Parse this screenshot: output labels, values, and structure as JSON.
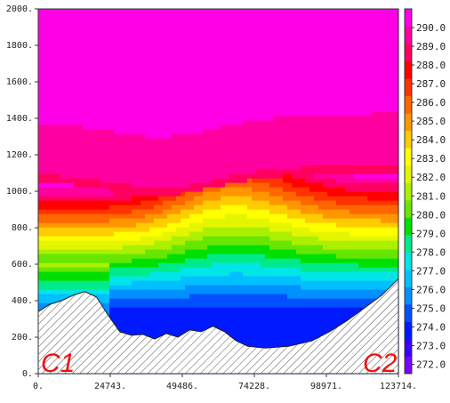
{
  "chart_data": {
    "type": "heatmap",
    "title": "",
    "xlabel": "",
    "ylabel": "",
    "x_ticks": [
      "0.",
      "24743.",
      "49486.",
      "74228.",
      "98971.",
      "123714."
    ],
    "y_ticks": [
      "0.",
      "200.",
      "400.",
      "600.",
      "800.",
      "1000.",
      "1200.",
      "1400.",
      "1600.",
      "1800.",
      "2000."
    ],
    "xlim": [
      0,
      123714
    ],
    "ylim": [
      0,
      2000
    ],
    "colorbar": {
      "min": 271.5,
      "max": 291.0,
      "labels": [
        "290.0",
        "289.0",
        "288.0",
        "287.0",
        "286.0",
        "285.0",
        "284.0",
        "283.0",
        "282.0",
        "281.0",
        "280.0",
        "279.0",
        "278.0",
        "277.0",
        "276.0",
        "275.0",
        "274.0",
        "273.0",
        "272.0"
      ],
      "colors": [
        "#7a00ff",
        "#3a00ff",
        "#0019ff",
        "#0050ff",
        "#0090ff",
        "#00c0ff",
        "#00e6e6",
        "#00ea8a",
        "#00e000",
        "#66e600",
        "#aaf000",
        "#e4f500",
        "#ffff00",
        "#ffcc00",
        "#ff9600",
        "#ff6600",
        "#ff3300",
        "#ff0000",
        "#ff0060",
        "#ff00a0",
        "#ff00e6"
      ]
    },
    "terrain": [
      [
        0,
        340
      ],
      [
        4000,
        380
      ],
      [
        8000,
        400
      ],
      [
        12000,
        430
      ],
      [
        16000,
        450
      ],
      [
        20000,
        420
      ],
      [
        24000,
        320
      ],
      [
        28000,
        230
      ],
      [
        32000,
        210
      ],
      [
        36000,
        215
      ],
      [
        40000,
        190
      ],
      [
        44000,
        220
      ],
      [
        48000,
        200
      ],
      [
        52000,
        240
      ],
      [
        56000,
        230
      ],
      [
        60000,
        260
      ],
      [
        64000,
        230
      ],
      [
        68000,
        180
      ],
      [
        72000,
        150
      ],
      [
        78000,
        140
      ],
      [
        86000,
        150
      ],
      [
        94000,
        180
      ],
      [
        100000,
        230
      ],
      [
        106000,
        290
      ],
      [
        112000,
        360
      ],
      [
        118000,
        430
      ],
      [
        123714,
        520
      ]
    ],
    "labels": {
      "left": "C1",
      "right": "C2"
    }
  }
}
